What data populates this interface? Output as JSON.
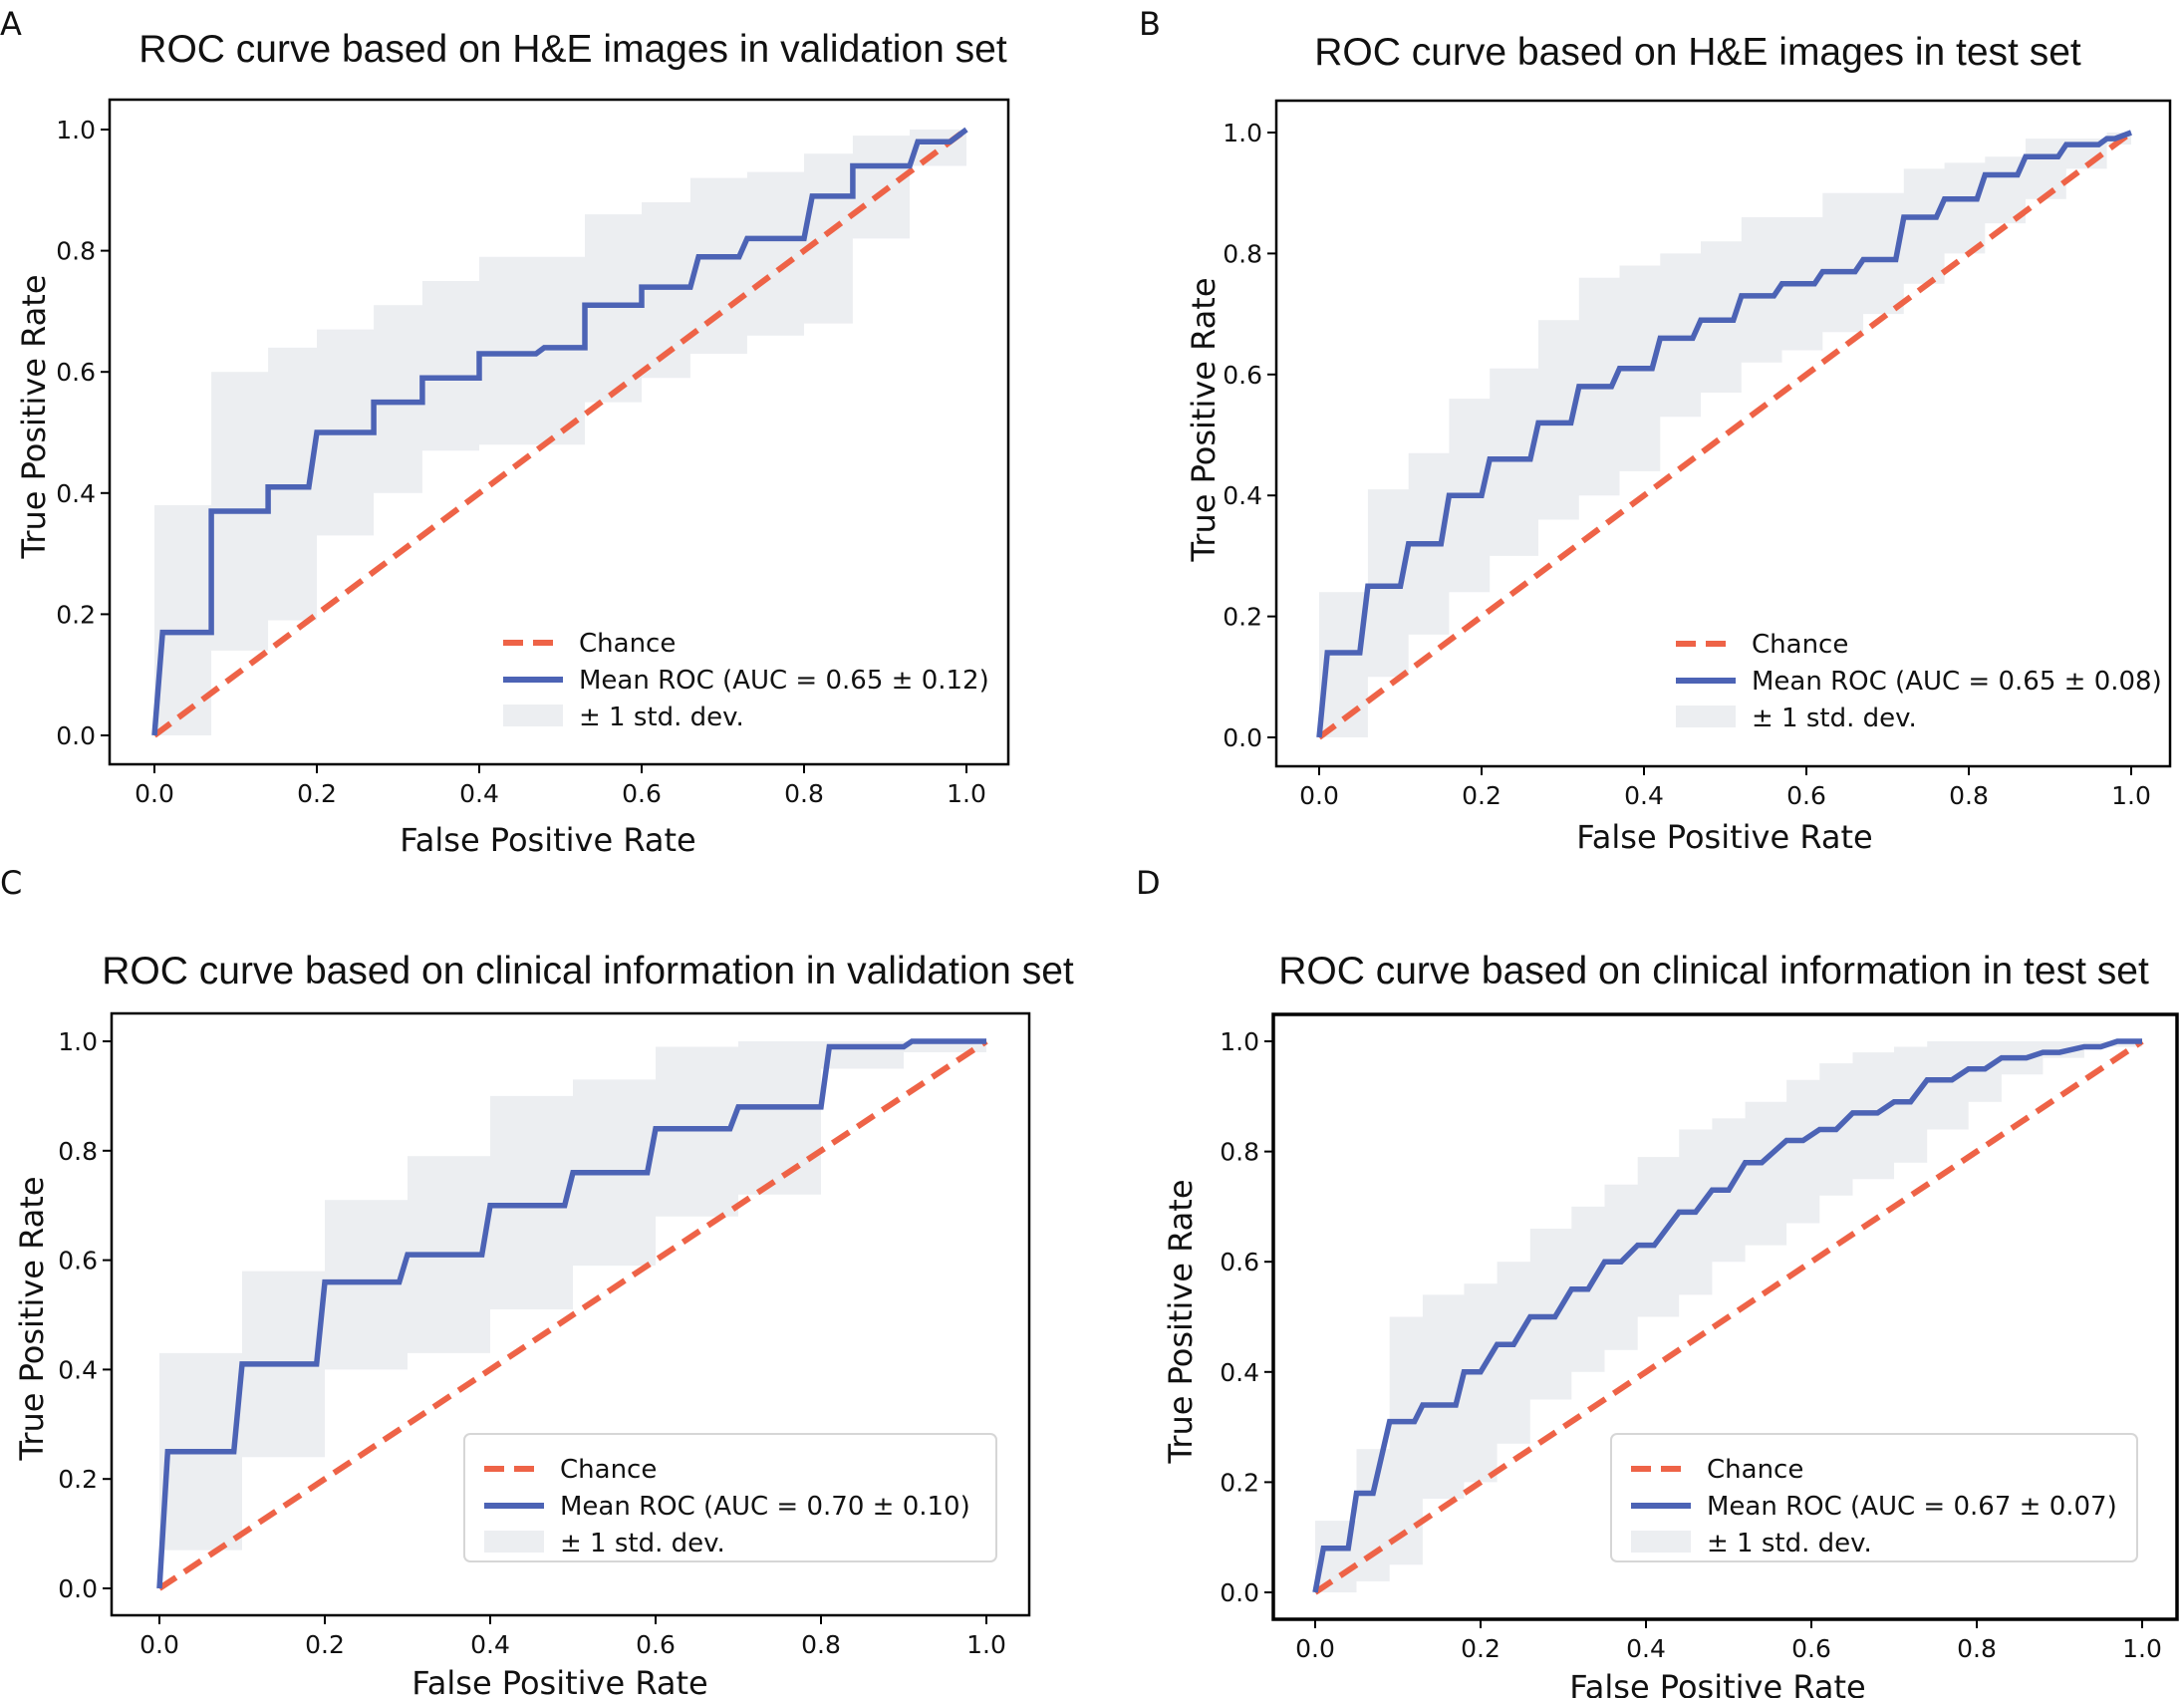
{
  "colors": {
    "chance": "#ee6347",
    "roc": "#4c63b5",
    "band": "#eceef1",
    "axis": "#000000"
  },
  "chart_data": [
    {
      "panel": "A",
      "type": "line",
      "title": "ROC curve based on H&E images in validation set",
      "xlabel": "False Positive Rate",
      "ylabel": "True Positive Rate",
      "xlim": [
        0,
        1
      ],
      "ylim": [
        0,
        1
      ],
      "xticks": [
        "0.0",
        "0.2",
        "0.4",
        "0.6",
        "0.8",
        "1.0"
      ],
      "yticks": [
        "0.0",
        "0.2",
        "0.4",
        "0.6",
        "0.8",
        "1.0"
      ],
      "legend_position": "lower-right",
      "legend": [
        "Chance",
        "Mean ROC (AUC = 0.65 ± 0.12)",
        "± 1 std. dev."
      ],
      "series": [
        {
          "name": "Chance",
          "x": [
            0,
            1
          ],
          "y": [
            0,
            1
          ]
        },
        {
          "name": "Mean ROC",
          "x": [
            0,
            0.01,
            0.07,
            0.07,
            0.14,
            0.14,
            0.19,
            0.2,
            0.27,
            0.27,
            0.33,
            0.33,
            0.4,
            0.4,
            0.47,
            0.48,
            0.53,
            0.53,
            0.6,
            0.6,
            0.66,
            0.67,
            0.72,
            0.73,
            0.8,
            0.81,
            0.86,
            0.86,
            0.93,
            0.94,
            0.98,
            1.0
          ],
          "y": [
            0,
            0.17,
            0.17,
            0.37,
            0.37,
            0.41,
            0.41,
            0.5,
            0.5,
            0.55,
            0.55,
            0.59,
            0.59,
            0.63,
            0.63,
            0.64,
            0.64,
            0.71,
            0.71,
            0.74,
            0.74,
            0.79,
            0.79,
            0.82,
            0.82,
            0.89,
            0.89,
            0.94,
            0.94,
            0.98,
            0.98,
            1.0
          ]
        },
        {
          "name": "± 1 std. dev.",
          "x": [
            0,
            0.07,
            0.14,
            0.2,
            0.27,
            0.33,
            0.4,
            0.47,
            0.53,
            0.6,
            0.66,
            0.73,
            0.8,
            0.86,
            0.93,
            1.0
          ],
          "upper": [
            0.38,
            0.6,
            0.64,
            0.67,
            0.71,
            0.75,
            0.79,
            0.79,
            0.86,
            0.88,
            0.92,
            0.93,
            0.96,
            0.99,
            1.0,
            1.0
          ],
          "lower": [
            0.0,
            0.14,
            0.19,
            0.33,
            0.4,
            0.47,
            0.48,
            0.48,
            0.55,
            0.59,
            0.63,
            0.66,
            0.68,
            0.82,
            0.94,
            1.0
          ]
        }
      ]
    },
    {
      "panel": "B",
      "type": "line",
      "title": "ROC curve based on H&E images in test set",
      "xlabel": "False Positive Rate",
      "ylabel": "True Positive Rate",
      "xlim": [
        0,
        1
      ],
      "ylim": [
        0,
        1
      ],
      "xticks": [
        "0.0",
        "0.2",
        "0.4",
        "0.6",
        "0.8",
        "1.0"
      ],
      "yticks": [
        "0.0",
        "0.2",
        "0.4",
        "0.6",
        "0.8",
        "1.0"
      ],
      "legend_position": "lower-right",
      "legend": [
        "Chance",
        "Mean ROC (AUC = 0.65 ± 0.08)",
        "± 1 std. dev."
      ],
      "series": [
        {
          "name": "Chance",
          "x": [
            0,
            1
          ],
          "y": [
            0,
            1
          ]
        },
        {
          "name": "Mean ROC",
          "x": [
            0,
            0.01,
            0.05,
            0.06,
            0.1,
            0.11,
            0.15,
            0.16,
            0.2,
            0.21,
            0.26,
            0.27,
            0.31,
            0.32,
            0.36,
            0.37,
            0.41,
            0.42,
            0.46,
            0.47,
            0.51,
            0.52,
            0.56,
            0.57,
            0.61,
            0.62,
            0.66,
            0.67,
            0.71,
            0.72,
            0.76,
            0.77,
            0.81,
            0.82,
            0.86,
            0.87,
            0.91,
            0.92,
            0.96,
            0.97,
            0.98,
            1.0
          ],
          "y": [
            0,
            0.14,
            0.14,
            0.25,
            0.25,
            0.32,
            0.32,
            0.4,
            0.4,
            0.46,
            0.46,
            0.52,
            0.52,
            0.58,
            0.58,
            0.61,
            0.61,
            0.66,
            0.66,
            0.69,
            0.69,
            0.73,
            0.73,
            0.75,
            0.75,
            0.77,
            0.77,
            0.79,
            0.79,
            0.86,
            0.86,
            0.89,
            0.89,
            0.93,
            0.93,
            0.96,
            0.96,
            0.98,
            0.98,
            0.99,
            0.99,
            1.0
          ]
        },
        {
          "name": "± 1 std. dev.",
          "x": [
            0,
            0.06,
            0.11,
            0.16,
            0.21,
            0.27,
            0.32,
            0.37,
            0.42,
            0.47,
            0.52,
            0.57,
            0.62,
            0.67,
            0.72,
            0.77,
            0.82,
            0.87,
            0.92,
            0.97,
            1.0
          ],
          "upper": [
            0.24,
            0.41,
            0.47,
            0.56,
            0.61,
            0.69,
            0.76,
            0.78,
            0.8,
            0.82,
            0.86,
            0.86,
            0.9,
            0.9,
            0.94,
            0.95,
            0.96,
            0.99,
            0.99,
            1.0,
            1.0
          ],
          "lower": [
            0.0,
            0.1,
            0.17,
            0.24,
            0.3,
            0.36,
            0.4,
            0.44,
            0.53,
            0.57,
            0.62,
            0.64,
            0.67,
            0.7,
            0.75,
            0.8,
            0.85,
            0.89,
            0.94,
            0.98,
            1.0
          ]
        }
      ]
    },
    {
      "panel": "C",
      "type": "line",
      "title": "ROC curve based on clinical information in validation set",
      "xlabel": "False Positive Rate",
      "ylabel": "True Positive Rate",
      "xlim": [
        0,
        1
      ],
      "ylim": [
        0,
        1
      ],
      "xticks": [
        "0.0",
        "0.2",
        "0.4",
        "0.6",
        "0.8",
        "1.0"
      ],
      "yticks": [
        "0.0",
        "0.2",
        "0.4",
        "0.6",
        "0.8",
        "1.0"
      ],
      "legend_position": "lower-right",
      "legend": [
        "Chance",
        "Mean ROC (AUC = 0.70 ± 0.10)",
        "± 1 std. dev."
      ],
      "series": [
        {
          "name": "Chance",
          "x": [
            0,
            1
          ],
          "y": [
            0,
            1
          ]
        },
        {
          "name": "Mean ROC",
          "x": [
            0,
            0.01,
            0.09,
            0.1,
            0.19,
            0.2,
            0.29,
            0.3,
            0.39,
            0.4,
            0.49,
            0.5,
            0.59,
            0.6,
            0.69,
            0.7,
            0.8,
            0.81,
            0.9,
            0.91,
            1.0
          ],
          "y": [
            0,
            0.25,
            0.25,
            0.41,
            0.41,
            0.56,
            0.56,
            0.61,
            0.61,
            0.7,
            0.7,
            0.76,
            0.76,
            0.84,
            0.84,
            0.88,
            0.88,
            0.99,
            0.99,
            1.0,
            1.0
          ]
        },
        {
          "name": "± 1 std. dev.",
          "x": [
            0,
            0.1,
            0.2,
            0.3,
            0.4,
            0.5,
            0.6,
            0.7,
            0.8,
            0.9,
            1.0
          ],
          "upper": [
            0.43,
            0.58,
            0.71,
            0.79,
            0.9,
            0.93,
            0.99,
            1.0,
            1.0,
            1.0,
            1.0
          ],
          "lower": [
            0.07,
            0.24,
            0.4,
            0.43,
            0.51,
            0.59,
            0.68,
            0.72,
            0.95,
            0.98,
            1.0
          ]
        }
      ]
    },
    {
      "panel": "D",
      "type": "line",
      "title": "ROC curve based on clinical information in test set",
      "xlabel": "False Positive Rate",
      "ylabel": "True Positive Rate",
      "xlim": [
        0,
        1
      ],
      "ylim": [
        0,
        1
      ],
      "xticks": [
        "0.0",
        "0.2",
        "0.4",
        "0.6",
        "0.8",
        "1.0"
      ],
      "yticks": [
        "0.0",
        "0.2",
        "0.4",
        "0.6",
        "0.8",
        "1.0"
      ],
      "legend_position": "lower-right",
      "legend": [
        "Chance",
        "Mean ROC (AUC =  0.67 ±  0.07)",
        "±  1 std. dev."
      ],
      "series": [
        {
          "name": "Chance",
          "x": [
            0,
            1
          ],
          "y": [
            0,
            1
          ]
        },
        {
          "name": "Mean ROC",
          "x": [
            0,
            0.01,
            0.04,
            0.05,
            0.07,
            0.09,
            0.12,
            0.13,
            0.17,
            0.18,
            0.2,
            0.22,
            0.24,
            0.26,
            0.29,
            0.31,
            0.33,
            0.35,
            0.37,
            0.39,
            0.41,
            0.44,
            0.46,
            0.48,
            0.5,
            0.52,
            0.54,
            0.57,
            0.59,
            0.61,
            0.63,
            0.65,
            0.68,
            0.7,
            0.72,
            0.74,
            0.77,
            0.79,
            0.81,
            0.83,
            0.86,
            0.88,
            0.9,
            0.93,
            0.95,
            0.97,
            1.0
          ],
          "y": [
            0,
            0.08,
            0.08,
            0.18,
            0.18,
            0.31,
            0.31,
            0.34,
            0.34,
            0.4,
            0.4,
            0.45,
            0.45,
            0.5,
            0.5,
            0.55,
            0.55,
            0.6,
            0.6,
            0.63,
            0.63,
            0.69,
            0.69,
            0.73,
            0.73,
            0.78,
            0.78,
            0.82,
            0.82,
            0.84,
            0.84,
            0.87,
            0.87,
            0.89,
            0.89,
            0.93,
            0.93,
            0.95,
            0.95,
            0.97,
            0.97,
            0.98,
            0.98,
            0.99,
            0.99,
            1.0,
            1.0
          ]
        },
        {
          "name": "± 1 std. dev.",
          "x": [
            0,
            0.05,
            0.09,
            0.13,
            0.18,
            0.22,
            0.26,
            0.31,
            0.35,
            0.39,
            0.44,
            0.48,
            0.52,
            0.57,
            0.61,
            0.65,
            0.7,
            0.74,
            0.79,
            0.83,
            0.88,
            0.93,
            1.0
          ],
          "upper": [
            0.13,
            0.26,
            0.5,
            0.54,
            0.56,
            0.6,
            0.66,
            0.7,
            0.74,
            0.79,
            0.84,
            0.86,
            0.89,
            0.93,
            0.96,
            0.98,
            0.99,
            1.0,
            1.0,
            1.0,
            1.0,
            1.0,
            1.0
          ],
          "lower": [
            0.0,
            0.02,
            0.05,
            0.17,
            0.2,
            0.27,
            0.35,
            0.4,
            0.44,
            0.5,
            0.54,
            0.6,
            0.63,
            0.67,
            0.72,
            0.75,
            0.78,
            0.84,
            0.89,
            0.94,
            0.97,
            0.99,
            1.0
          ]
        }
      ]
    }
  ]
}
